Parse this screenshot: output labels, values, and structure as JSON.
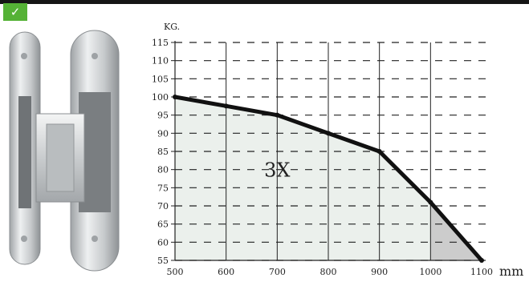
{
  "badge": {
    "icon": "checkmark-icon",
    "glyph": "✓",
    "color": "#55b236"
  },
  "product": {
    "icon": "concealed-hinge-image"
  },
  "chart_data": {
    "type": "line",
    "title": "",
    "xlabel": "mm",
    "ylabel": "KG.",
    "xlim": [
      500,
      1100
    ],
    "ylim": [
      55,
      115
    ],
    "x_ticks": [
      500,
      600,
      700,
      800,
      900,
      1000,
      1100
    ],
    "y_ticks": [
      55,
      60,
      65,
      70,
      75,
      80,
      85,
      90,
      95,
      100,
      105,
      110,
      115
    ],
    "grid": true,
    "series": [
      {
        "x": [
          500,
          600,
          700,
          800,
          900,
          1000,
          1100
        ],
        "y": [
          100,
          97.5,
          95,
          90,
          85,
          71,
          55
        ],
        "color": "#111111"
      }
    ],
    "annotations": [
      {
        "text": "3X",
        "x": 700,
        "y": 80
      }
    ],
    "shaded_regions": [
      {
        "x": [
          500,
          1000
        ],
        "color": "#ebf0ec"
      },
      {
        "x": [
          1000,
          1100
        ],
        "color": "#cccccc"
      }
    ]
  }
}
